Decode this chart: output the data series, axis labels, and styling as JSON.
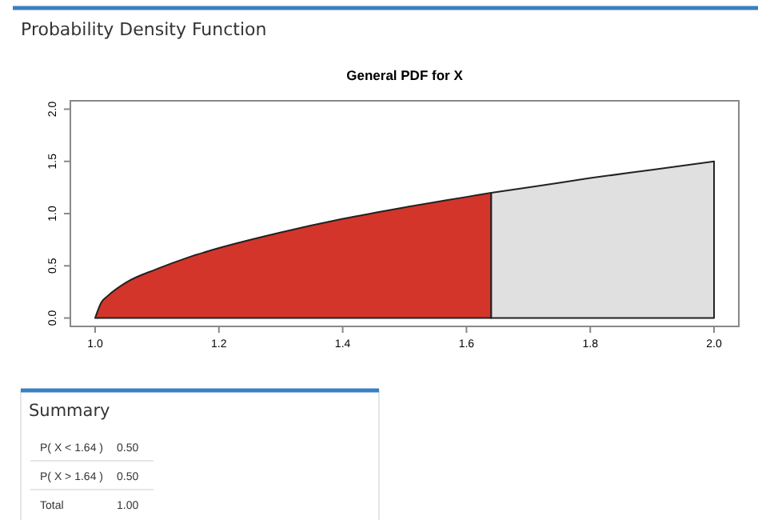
{
  "chart_data": [
    {
      "type": "area",
      "title": "Probability Density Function",
      "subtitle": "General PDF for X",
      "xlim": [
        0.96,
        2.04
      ],
      "ylim": [
        -0.08,
        2.08
      ],
      "xticks": [
        {
          "value": 1,
          "label": "1.0"
        },
        1.2,
        1.4,
        1.6,
        1.8,
        {
          "value": 2,
          "label": "2.0"
        }
      ],
      "yticks": [
        {
          "value": 0,
          "label": "0.0"
        },
        0.5,
        {
          "value": 1,
          "label": "1.0"
        },
        1.5,
        {
          "value": 2,
          "label": "2.0"
        }
      ],
      "series": [
        {
          "color": "#d3352b",
          "x": [
            1.0,
            1.01,
            1.02,
            1.05,
            1.1,
            1.15,
            1.2,
            1.3,
            1.4,
            1.5,
            1.6,
            1.64
          ],
          "values": [
            0,
            0.15,
            0.21,
            0.34,
            0.47,
            0.58,
            0.67,
            0.82,
            0.95,
            1.06,
            1.16,
            1.2
          ]
        },
        {
          "color": "#e0e0e0",
          "x": [
            1.64,
            1.7,
            1.8,
            1.9,
            2.0
          ],
          "values": [
            1.2,
            1.25,
            1.34,
            1.42,
            1.5
          ]
        }
      ]
    },
    {
      "type": "other",
      "title": "Summary",
      "categories": [
        "P( X < 1.64 )",
        "P( X > 1.64 )",
        "Total"
      ],
      "value_labels": [
        "0.50",
        "0.50",
        "1.00"
      ]
    }
  ]
}
